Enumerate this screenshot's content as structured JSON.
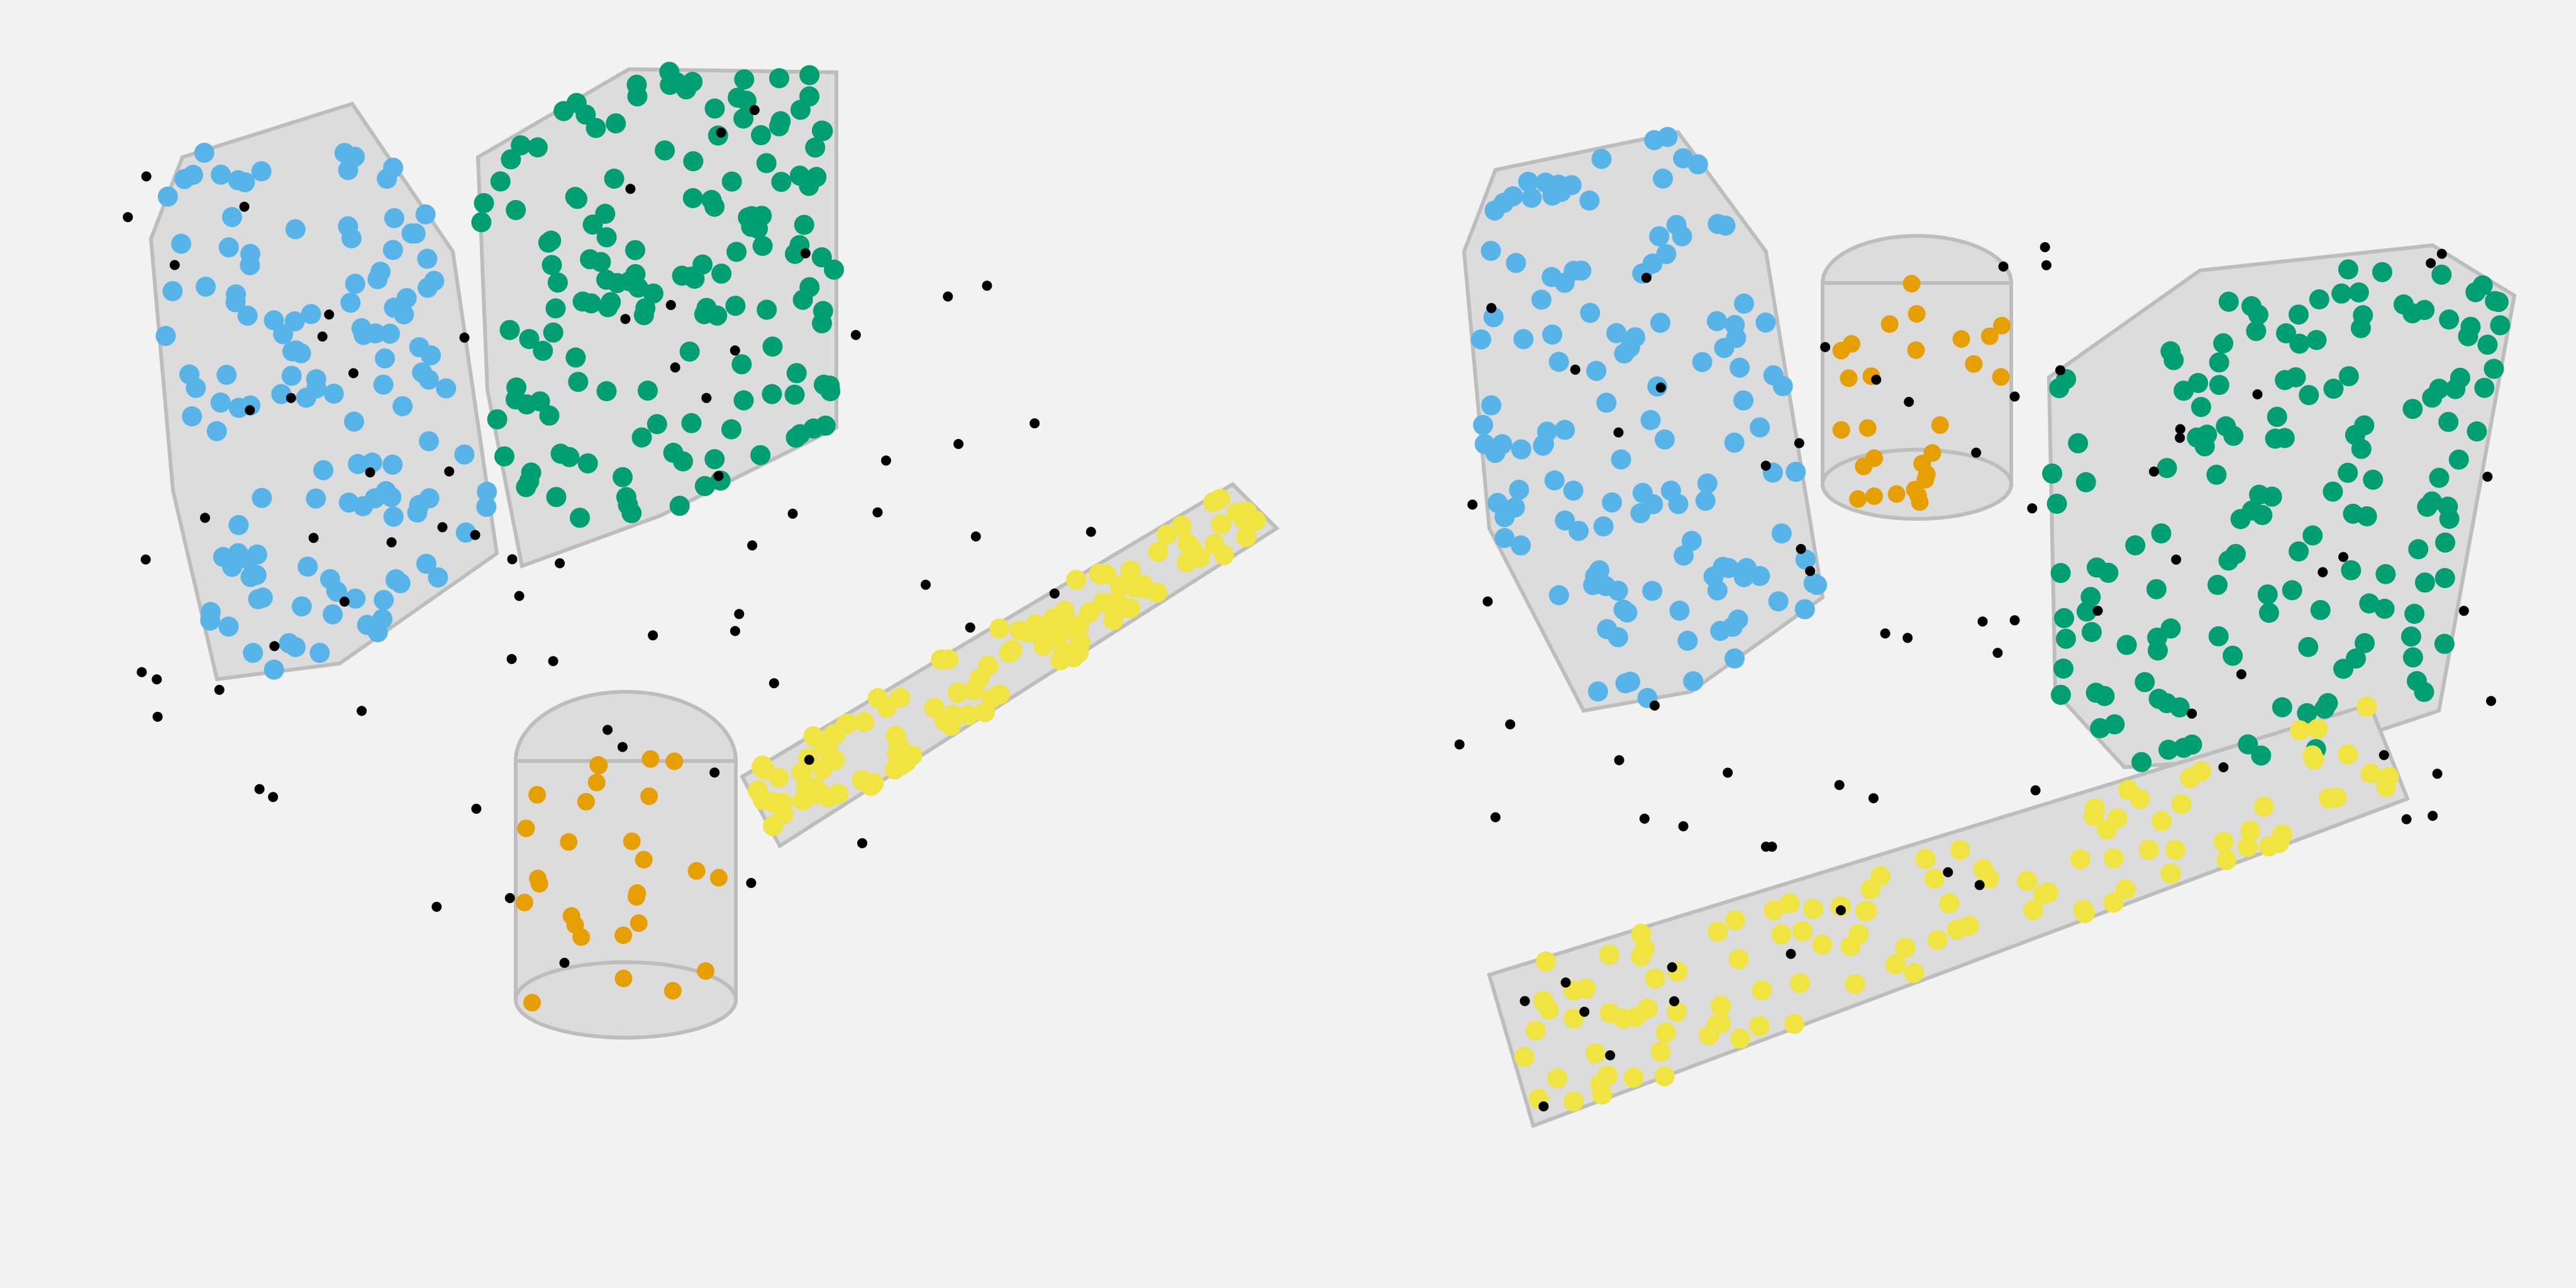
{
  "scene": {
    "colors": {
      "background": "#f2f2f2",
      "object_fill": "#dcdcdc",
      "object_edge": "#bdbdbd",
      "milk_carton_points": "#56b4e9",
      "cereal_box_points": "#009e73",
      "can_points": "#e69f00",
      "pasta_box_points": "#f0e442",
      "outlier_points": "#000000"
    },
    "point_icon": "circle-marker-icon",
    "point_counts": {
      "milk_carton": 130,
      "cereal_box": 150,
      "can": 28,
      "pasta_box": 110,
      "outliers": 70
    }
  }
}
